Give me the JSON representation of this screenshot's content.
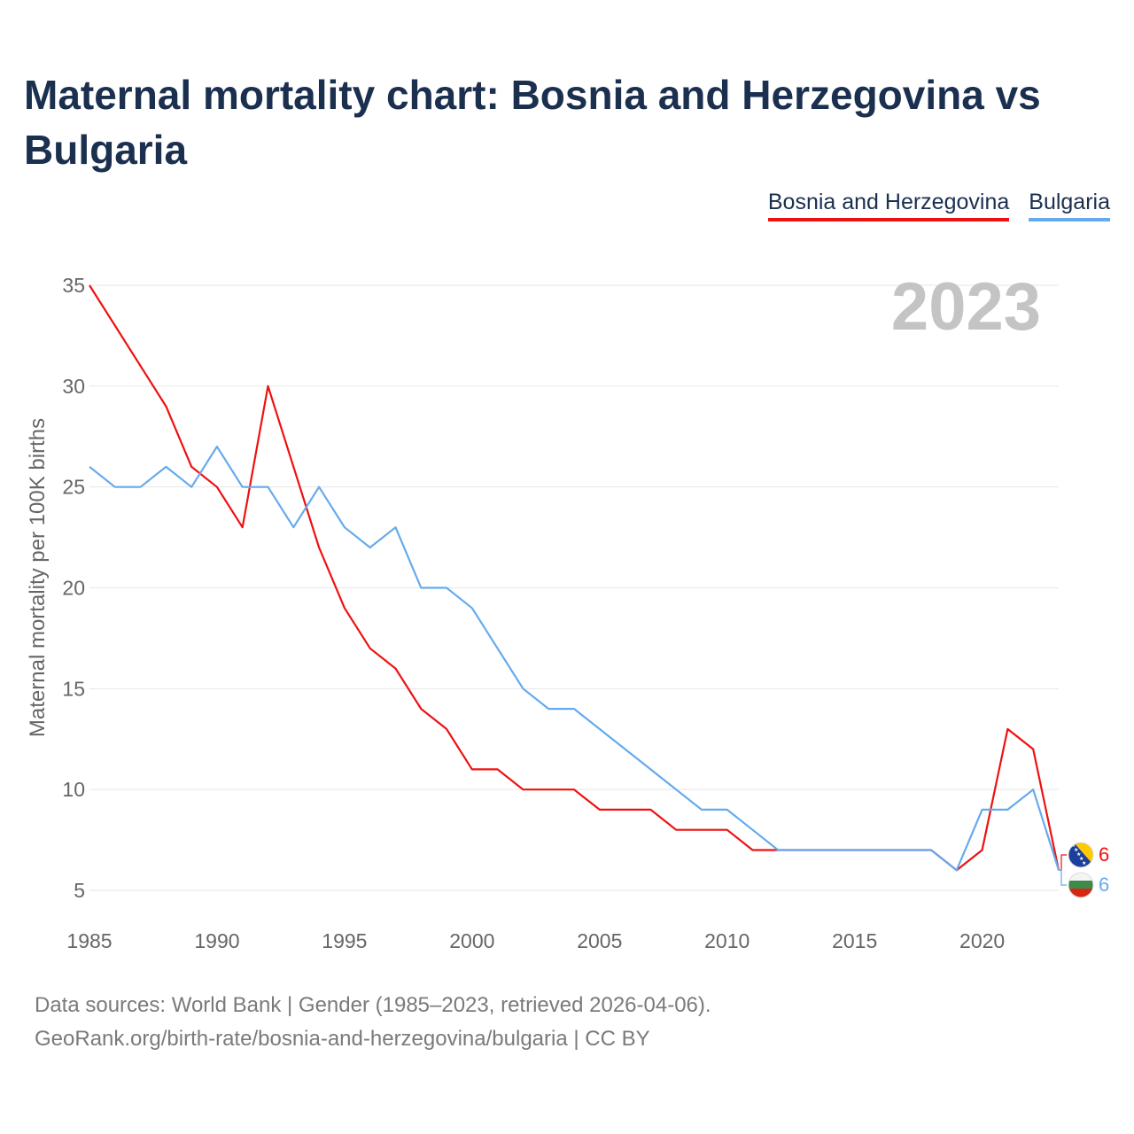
{
  "title": "Maternal mortality chart: Bosnia and Herzegovina vs Bulgaria",
  "chart_data": {
    "type": "line",
    "title": "Maternal mortality chart: Bosnia and Herzegovina vs Bulgaria",
    "ylabel": "Maternal mortality per 100K births",
    "xlabel": "",
    "year_label": "2023",
    "xlim": [
      1985,
      2023
    ],
    "ylim": [
      5,
      35
    ],
    "x_ticks": [
      "1985",
      "1990",
      "1995",
      "2000",
      "2005",
      "2010",
      "2015",
      "2020"
    ],
    "y_ticks": [
      "35",
      "30",
      "25",
      "20",
      "15",
      "10",
      "5"
    ],
    "x": [
      1985,
      1986,
      1987,
      1988,
      1989,
      1990,
      1991,
      1992,
      1993,
      1994,
      1995,
      1996,
      1997,
      1998,
      1999,
      2000,
      2001,
      2002,
      2003,
      2004,
      2005,
      2006,
      2007,
      2008,
      2009,
      2010,
      2011,
      2012,
      2013,
      2014,
      2015,
      2016,
      2017,
      2018,
      2019,
      2020,
      2021,
      2022,
      2023
    ],
    "series": [
      {
        "name": "Bosnia and Herzegovina",
        "color": "#ee1111",
        "end_label": "6",
        "values": [
          35,
          33,
          31,
          29,
          26,
          25,
          23,
          30,
          26,
          22,
          19,
          17,
          16,
          14,
          13,
          11,
          11,
          10,
          10,
          10,
          9,
          9,
          9,
          8,
          8,
          8,
          7,
          7,
          7,
          7,
          7,
          7,
          7,
          7,
          6,
          7,
          13,
          12,
          6
        ]
      },
      {
        "name": "Bulgaria",
        "color": "#66aaee",
        "end_label": "6",
        "values": [
          26,
          25,
          25,
          26,
          25,
          27,
          25,
          25,
          23,
          25,
          23,
          22,
          23,
          20,
          20,
          19,
          17,
          15,
          14,
          14,
          13,
          12,
          11,
          10,
          9,
          9,
          8,
          7,
          7,
          7,
          7,
          7,
          7,
          7,
          6,
          9,
          9,
          10,
          6
        ]
      }
    ],
    "legend_position": "top-right",
    "grid": true
  },
  "footer": {
    "line1": "Data sources: World Bank | Gender (1985–2023, retrieved 2026-04-06).",
    "line2": "GeoRank.org/birth-rate/bosnia-and-herzegovina/bulgaria | CC BY"
  }
}
